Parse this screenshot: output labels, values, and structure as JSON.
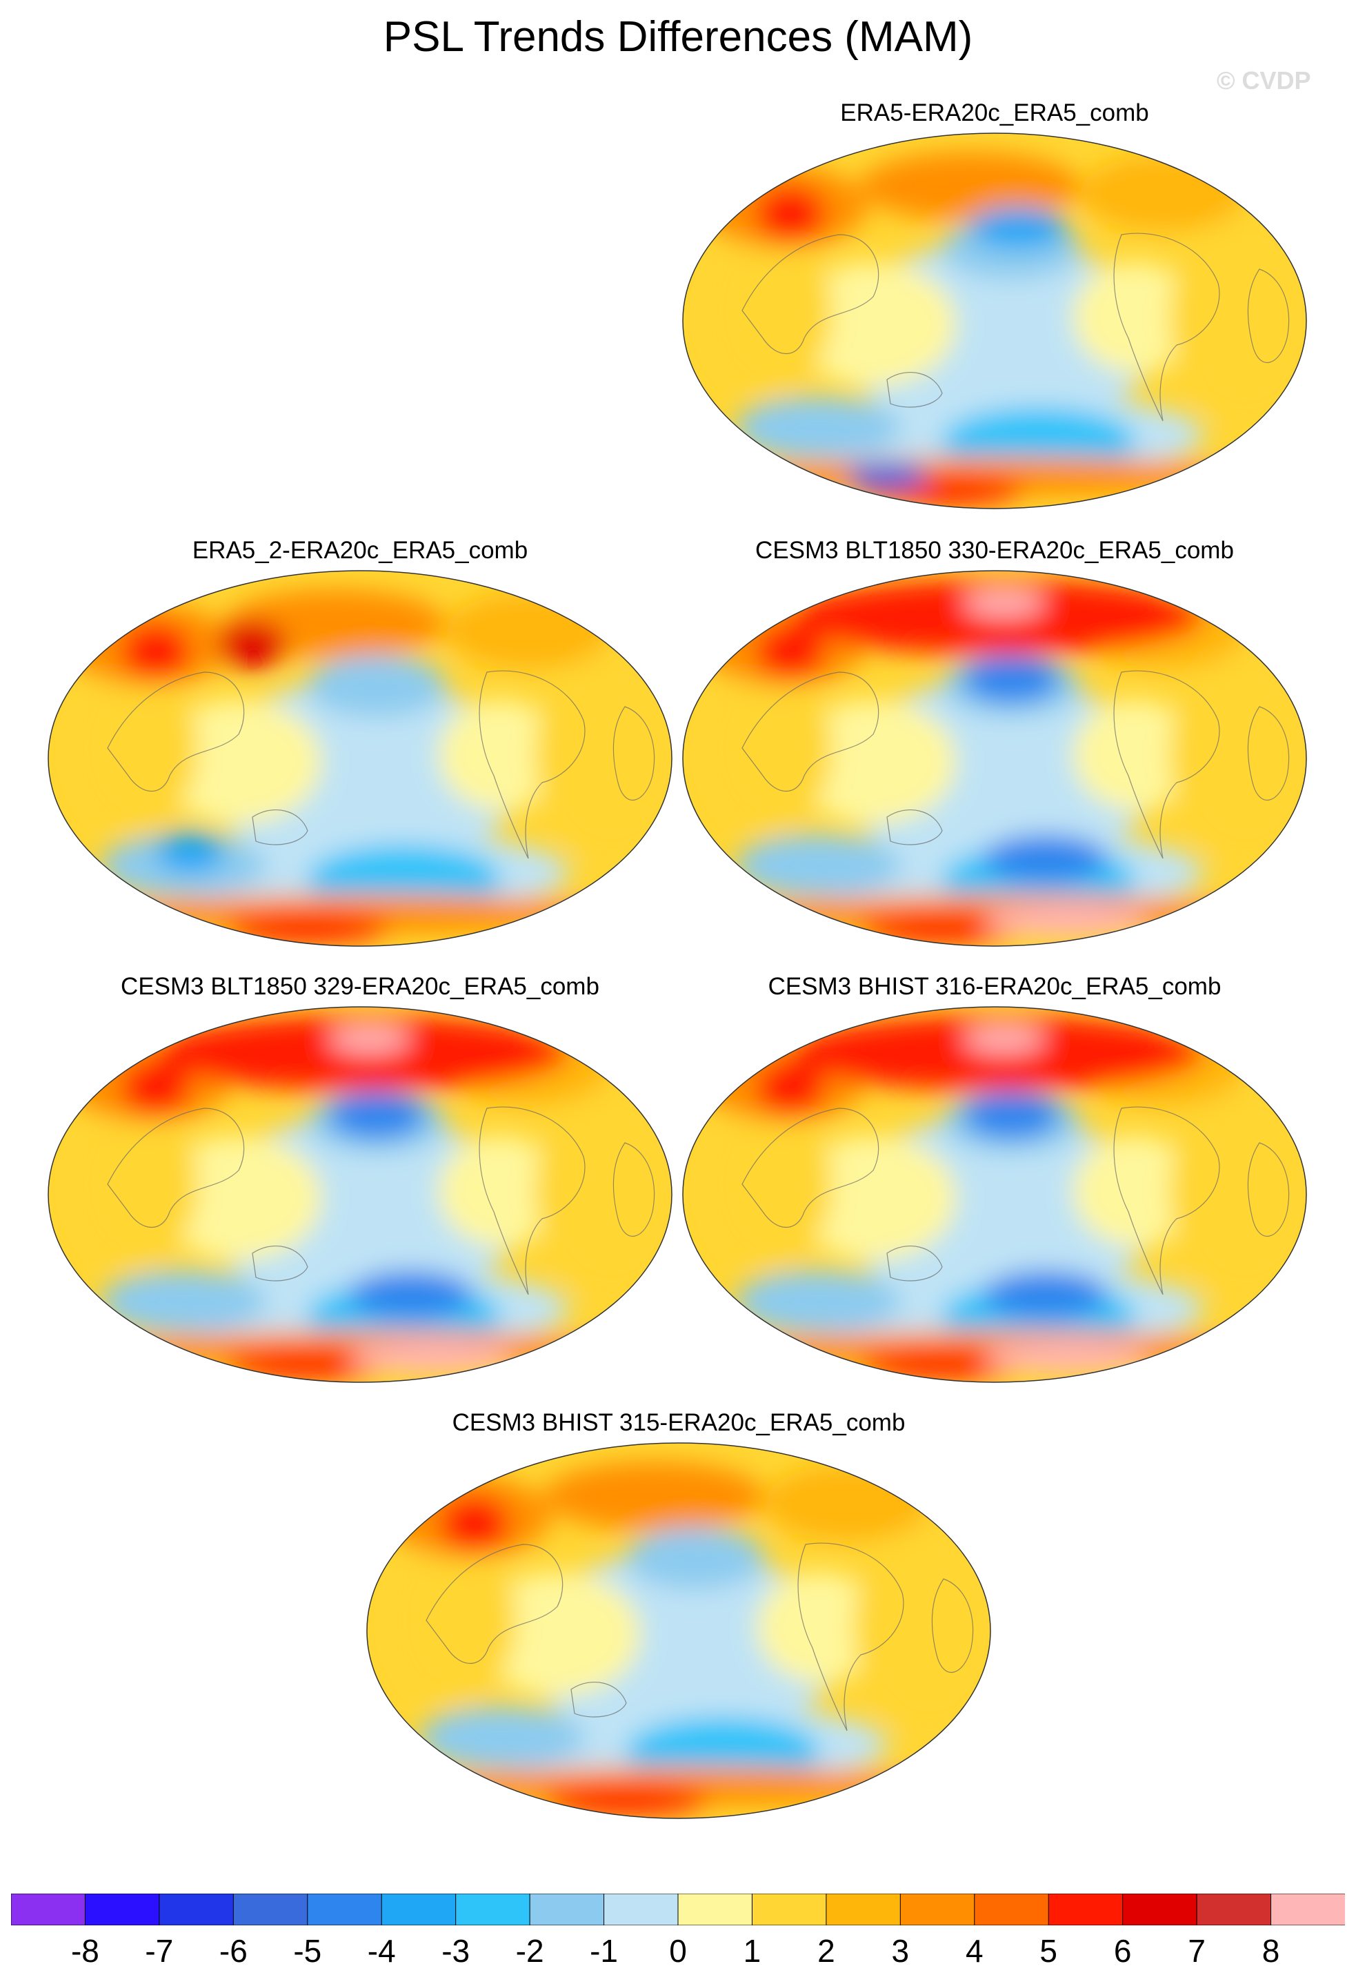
{
  "title": "PSL Trends Differences (MAM)",
  "copyright": "© CVDP",
  "panels": [
    {
      "id": "p1",
      "title": "ERA5-ERA20c_ERA5_comb"
    },
    {
      "id": "p2",
      "title": "ERA5_2-ERA20c_ERA5_comb"
    },
    {
      "id": "p3",
      "title": "CESM3 BLT1850 330-ERA20c_ERA5_comb"
    },
    {
      "id": "p4",
      "title": "CESM3 BLT1850 329-ERA20c_ERA5_comb"
    },
    {
      "id": "p5",
      "title": "CESM3 BHIST 316-ERA20c_ERA5_comb"
    },
    {
      "id": "p6",
      "title": "CESM3 BHIST 315-ERA20c_ERA5_comb"
    }
  ],
  "colorbar": {
    "labels": [
      "-8",
      "-7",
      "-6",
      "-5",
      "-4",
      "-3",
      "-2",
      "-1",
      "0",
      "1",
      "2",
      "3",
      "4",
      "5",
      "6",
      "7",
      "8"
    ],
    "colors": [
      "#8b2ff0",
      "#2b0fff",
      "#2136e8",
      "#3a6bdc",
      "#2f85ee",
      "#1fa6f5",
      "#2ec3f9",
      "#8ccbef",
      "#bfe3f5",
      "#fff79c",
      "#ffd633",
      "#ffb60a",
      "#ff8f00",
      "#ff6a00",
      "#ff1a00",
      "#e00000",
      "#d22f2f",
      "#ffb6b6"
    ]
  }
}
